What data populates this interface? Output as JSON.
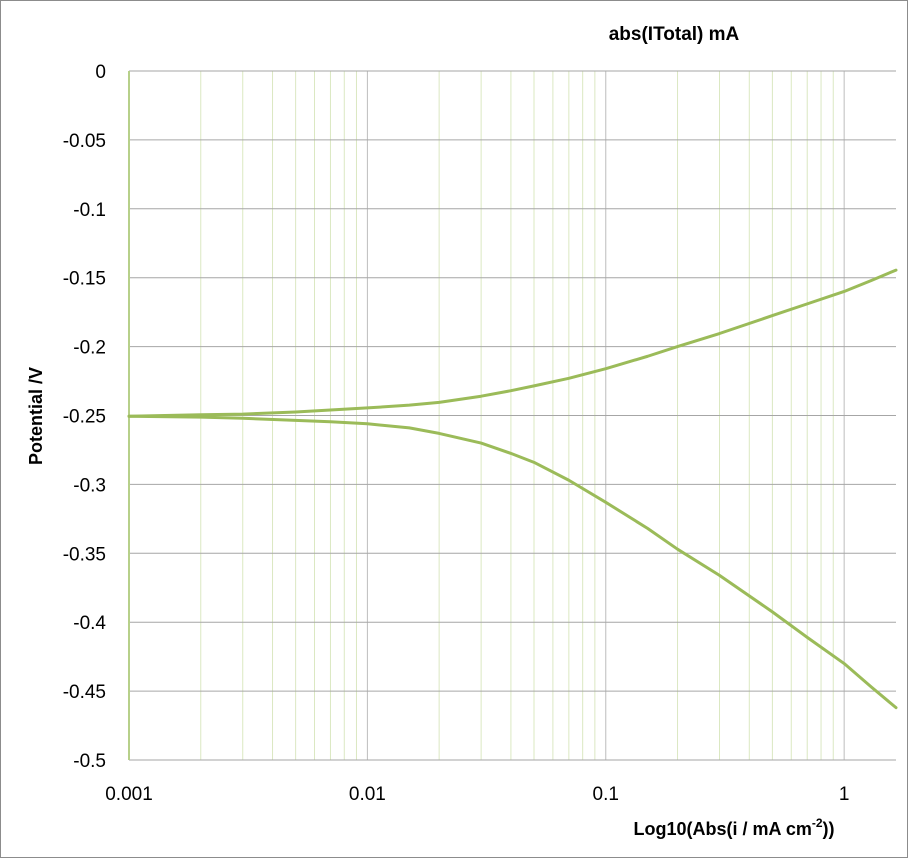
{
  "chart_data": {
    "type": "line",
    "title": "abs(ITotal) mA",
    "xlabel": "Log10(Abs(i / mA cm",
    "xlabel_sup": "-2",
    "xlabel_tail": "))",
    "ylabel": "Potential /V",
    "x_scale": "log",
    "xlim": [
      0.001,
      1.65
    ],
    "ylim": [
      -0.5,
      0
    ],
    "x_ticks": [
      0.001,
      0.01,
      0.1,
      1
    ],
    "x_tick_labels": [
      "0.001",
      "0.01",
      "0.1",
      "1"
    ],
    "y_ticks": [
      0,
      -0.05,
      -0.1,
      -0.15,
      -0.2,
      -0.25,
      -0.3,
      -0.35,
      -0.4,
      -0.45,
      -0.5
    ],
    "y_tick_labels": [
      "0",
      "-0.05",
      "-0.1",
      "-0.15",
      "-0.2",
      "-0.25",
      "-0.3",
      "-0.35",
      "-0.4",
      "-0.45",
      "-0.5"
    ],
    "grid": {
      "horizontal": true,
      "vertical_major": true,
      "vertical_minor": true
    },
    "line_color": "#9bbb59",
    "series": [
      {
        "points": [
          [
            0.001,
            -0.2505
          ],
          [
            0.002,
            -0.2495
          ],
          [
            0.003,
            -0.249
          ],
          [
            0.005,
            -0.2475
          ],
          [
            0.007,
            -0.246
          ],
          [
            0.01,
            -0.2445
          ],
          [
            0.015,
            -0.2425
          ],
          [
            0.02,
            -0.2405
          ],
          [
            0.03,
            -0.236
          ],
          [
            0.04,
            -0.232
          ],
          [
            0.05,
            -0.2285
          ],
          [
            0.07,
            -0.223
          ],
          [
            0.1,
            -0.216
          ],
          [
            0.15,
            -0.207
          ],
          [
            0.2,
            -0.2
          ],
          [
            0.3,
            -0.1905
          ],
          [
            0.5,
            -0.1775
          ],
          [
            0.7,
            -0.169
          ],
          [
            1,
            -0.16
          ],
          [
            1.3,
            -0.152
          ],
          [
            1.65,
            -0.1445
          ]
        ]
      },
      {
        "points": [
          [
            0.001,
            -0.2505
          ],
          [
            0.002,
            -0.2512
          ],
          [
            0.003,
            -0.252
          ],
          [
            0.005,
            -0.2535
          ],
          [
            0.007,
            -0.2545
          ],
          [
            0.01,
            -0.256
          ],
          [
            0.015,
            -0.259
          ],
          [
            0.02,
            -0.263
          ],
          [
            0.03,
            -0.27
          ],
          [
            0.04,
            -0.2775
          ],
          [
            0.05,
            -0.284
          ],
          [
            0.07,
            -0.297
          ],
          [
            0.1,
            -0.313
          ],
          [
            0.15,
            -0.332
          ],
          [
            0.2,
            -0.347
          ],
          [
            0.3,
            -0.366
          ],
          [
            0.5,
            -0.3925
          ],
          [
            0.7,
            -0.411
          ],
          [
            1,
            -0.43
          ],
          [
            1.3,
            -0.447
          ],
          [
            1.65,
            -0.462
          ]
        ]
      }
    ]
  }
}
